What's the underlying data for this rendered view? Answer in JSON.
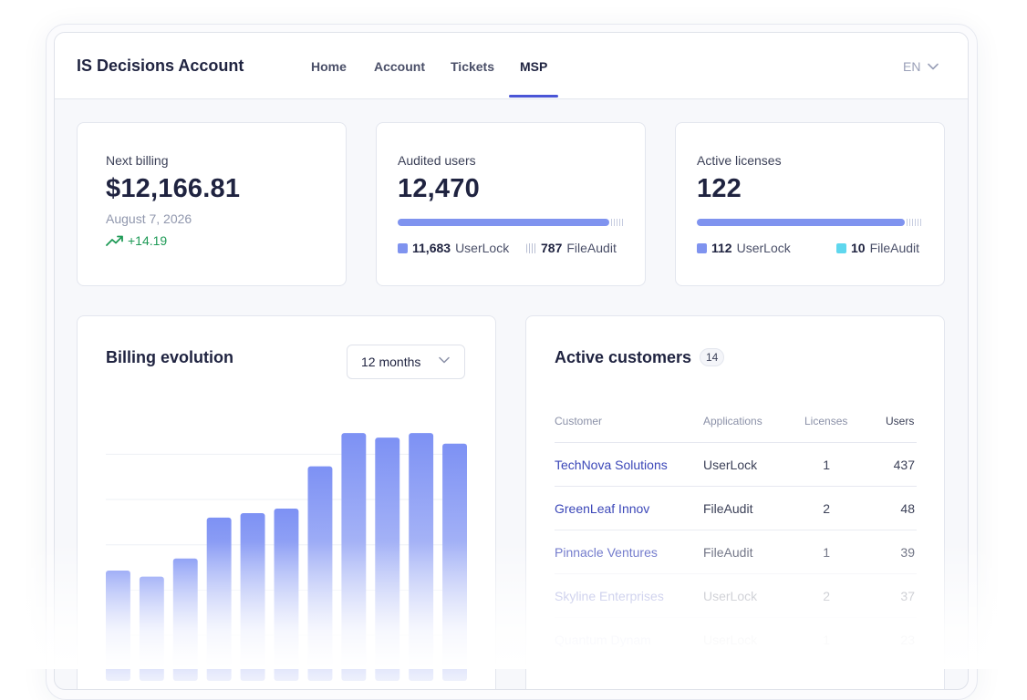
{
  "header": {
    "app_title": "IS Decisions Account",
    "nav": [
      {
        "label": "Home",
        "active": false
      },
      {
        "label": "Account",
        "active": false
      },
      {
        "label": "Tickets",
        "active": false
      },
      {
        "label": "MSP",
        "active": true
      }
    ],
    "language": "EN"
  },
  "stats": {
    "billing": {
      "label": "Next billing",
      "value": "$12,166.81",
      "date": "August 7, 2026",
      "trend": "+14.19",
      "trend_icon": "trending-up-icon"
    },
    "audited": {
      "label": "Audited users",
      "value": "12,470",
      "userlock_count": "11,683",
      "userlock_label": "UserLock",
      "fileaudit_count": "787",
      "fileaudit_label": "FileAudit",
      "userlock_fraction": 0.937
    },
    "licenses": {
      "label": "Active licenses",
      "value": "122",
      "userlock_count": "112",
      "userlock_label": "UserLock",
      "fileaudit_count": "10",
      "fileaudit_label": "FileAudit",
      "userlock_fraction": 0.918
    }
  },
  "billing_evolution": {
    "title": "Billing evolution",
    "period": "12 months"
  },
  "chart_data": {
    "type": "bar",
    "title": "Billing evolution",
    "categories": [
      "",
      "",
      "",
      "",
      "",
      "",
      "",
      "",
      "",
      "",
      ""
    ],
    "values": [
      7.3,
      6.9,
      8.1,
      10.8,
      11.1,
      11.4,
      14.2,
      16.4,
      16.1,
      16.4,
      15.7
    ],
    "ylim": [
      0,
      19
    ],
    "grid": true
  },
  "customers": {
    "title": "Active customers",
    "count": "14",
    "columns": [
      "Customer",
      "Applications",
      "Licenses",
      "Users"
    ],
    "rows": [
      {
        "customer": "TechNova Solutions",
        "app": "UserLock",
        "licenses": "1",
        "users": "437"
      },
      {
        "customer": "GreenLeaf Innov",
        "app": "FileAudit",
        "licenses": "2",
        "users": "48"
      },
      {
        "customer": "Pinnacle Ventures",
        "app": "FileAudit",
        "licenses": "1",
        "users": "39"
      },
      {
        "customer": "Skyline Enterprises",
        "app": "UserLock",
        "licenses": "2",
        "users": "37"
      },
      {
        "customer": "Quantum Dynam",
        "app": "UserLock",
        "licenses": "1",
        "users": "23"
      }
    ]
  },
  "colors": {
    "accent": "#4a55d6",
    "bar": "#7f93ef",
    "fileaudit": "#5fd7ee",
    "trend_positive": "#1e9a56"
  }
}
